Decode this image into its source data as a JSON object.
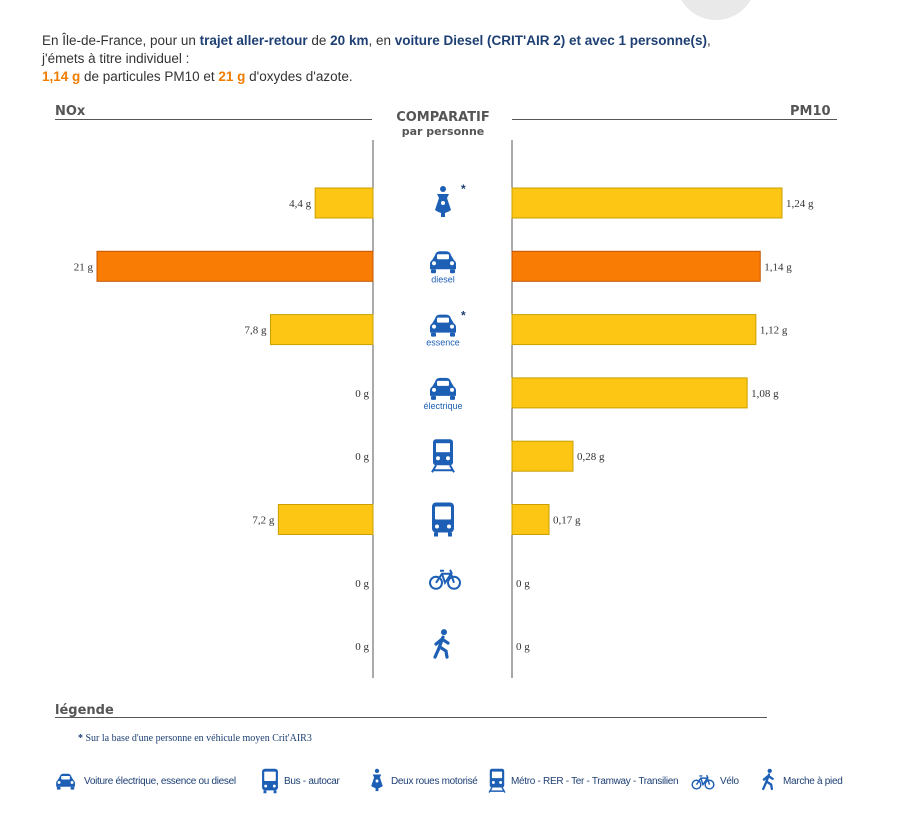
{
  "intro": {
    "line1_prefix": "En Île-de-France, pour un ",
    "trip": "trajet aller-retour",
    "line1_mid": " de ",
    "distance": "20 km",
    "line1_mid2": ", en ",
    "vehicle": "voiture Diesel (CRIT'AIR 2) et avec 1 personne(s)",
    "line1_suffix": ",",
    "line2": "j'émets à titre individuel :",
    "pm10_value": "1,14 g",
    "line3_mid": " de particules PM10 et ",
    "nox_value": "21 g",
    "line3_suffix": " d'oxydes d'azote."
  },
  "header": {
    "left": "NOx",
    "right": "PM10",
    "center_title": "COMPARATIF",
    "center_sub": "par personne"
  },
  "chart_data": {
    "type": "bar",
    "categories": [
      "Deux roues motorisé*",
      "diesel",
      "essence*",
      "électrique",
      "Métro - RER - Ter - Tramway - Transilien",
      "Bus - autocar",
      "Vélo",
      "Marche à pied"
    ],
    "icons": [
      "scooter-icon",
      "car-icon",
      "car-icon",
      "car-icon",
      "train-icon",
      "bus-icon",
      "bike-icon",
      "walk-icon"
    ],
    "icon_labels": [
      "",
      "diesel",
      "essence",
      "électrique",
      "",
      "",
      "",
      ""
    ],
    "starred": [
      true,
      false,
      true,
      false,
      false,
      false,
      false,
      false
    ],
    "highlight_index": 1,
    "series": [
      {
        "name": "NOx",
        "values": [
          4.4,
          21,
          7.8,
          0,
          0,
          7.2,
          0,
          0
        ],
        "labels": [
          "4,4 g",
          "21 g",
          "7,8 g",
          "0 g",
          "0 g",
          "7,2 g",
          "0 g",
          "0 g"
        ]
      },
      {
        "name": "PM10",
        "values": [
          1.24,
          1.14,
          1.12,
          1.08,
          0.28,
          0.17,
          0,
          0
        ],
        "labels": [
          "1,24 g",
          "1,14 g",
          "1,12 g",
          "1,08 g",
          "0,28 g",
          "0,17 g",
          "0 g",
          "0 g"
        ]
      }
    ],
    "colors": {
      "bar": "#fdc614",
      "bar_border": "#c9a000",
      "highlight": "#f97c04",
      "highlight_border": "#c45500",
      "icon": "#1d5fb5"
    }
  },
  "legend": {
    "title": "légende",
    "note_star": "*",
    "note": "Sur la base d'une personne en véhicule moyen Crit'AIR3",
    "items": [
      {
        "icon": "car-icon",
        "label": "Voiture électrique, essence ou diesel"
      },
      {
        "icon": "bus-icon",
        "label": "Bus - autocar"
      },
      {
        "icon": "scooter-icon",
        "label": "Deux roues motorisé"
      },
      {
        "icon": "train-icon",
        "label": "Métro - RER - Ter - Tramway - Transilien"
      },
      {
        "icon": "bike-icon",
        "label": "Vélo"
      },
      {
        "icon": "walk-icon",
        "label": "Marche à pied"
      }
    ]
  }
}
